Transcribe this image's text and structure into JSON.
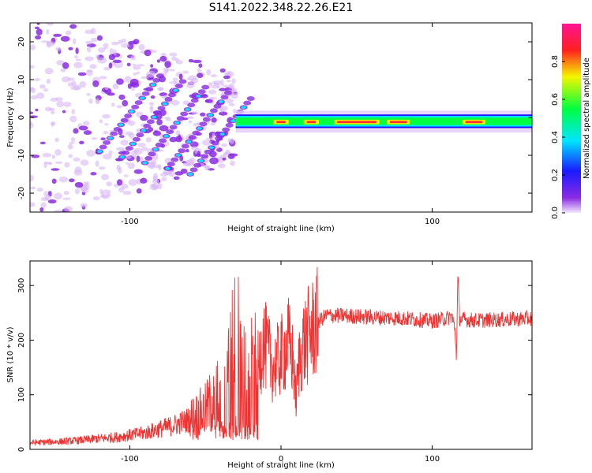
{
  "title": "S141.2022.348.22.26.E21",
  "chart_data": [
    {
      "type": "heatmap",
      "name": "spectrogram",
      "xlabel": "Height of straight line (km)",
      "ylabel": "Frequency (Hz)",
      "xlim": [
        -166,
        166
      ],
      "ylim": [
        -25,
        25
      ],
      "xticks": [
        -100,
        0,
        100
      ],
      "xtick_labels": [
        "-100",
        "",
        "100"
      ],
      "yticks": [
        -20,
        -10,
        0,
        10,
        20
      ],
      "ytick_labels": [
        "-20",
        "-10",
        "0",
        "10",
        "20"
      ],
      "colorbar": {
        "label": "Normalized spectral amplitude",
        "range": [
          0,
          1
        ],
        "ticks": [
          0.0,
          0.2,
          0.4,
          0.6,
          0.8
        ],
        "tick_labels": [
          "0.0",
          "0.2",
          "0.4",
          "0.6",
          "0.8"
        ],
        "colormap": "rainbow (purple-blue-cyan-green-yellow-red-magenta)"
      },
      "features": [
        {
          "x": [
            -166,
            -30
          ],
          "freq_hz": [
            -25,
            25
          ],
          "amplitude": "scattered low (purple) noise"
        },
        {
          "x": [
            -30,
            166
          ],
          "freq_hz": [
            -2,
            1
          ],
          "amplitude": "continuous strong band near 0 Hz, peaks 0.8-0.9"
        },
        {
          "x": [
            -130,
            -30
          ],
          "freq_hz": [
            -10,
            12
          ],
          "amplitude": "diagonal striations rising toward x=-30"
        }
      ],
      "colors": {
        "scatter": "#8a2be2",
        "band_edge": "#00e5ff",
        "band_core": "#ff3030"
      }
    },
    {
      "type": "line",
      "name": "snr",
      "xlabel": "Height of straight line (km)",
      "ylabel": "SNR (10 * v/v)",
      "xlim": [
        -166,
        166
      ],
      "ylim": [
        0,
        345
      ],
      "xticks": [
        -100,
        0,
        100
      ],
      "xtick_labels": [
        "-100",
        "0",
        "100"
      ],
      "yticks": [
        0,
        100,
        200,
        300
      ],
      "ytick_labels": [
        "0",
        "100",
        "200",
        "300"
      ],
      "color": "#ee3333",
      "x": [
        -166,
        -140,
        -110,
        -90,
        -70,
        -60,
        -50,
        -40,
        -35,
        -30,
        -25,
        -20,
        -15,
        -12,
        -8,
        -5,
        0,
        5,
        8,
        10,
        12,
        15,
        20,
        25,
        30,
        40,
        60,
        80,
        100,
        110,
        113,
        115,
        116,
        117,
        118,
        120,
        130,
        150,
        166
      ],
      "y": [
        12,
        15,
        22,
        30,
        45,
        55,
        70,
        110,
        150,
        210,
        170,
        140,
        150,
        200,
        170,
        150,
        170,
        195,
        160,
        90,
        165,
        195,
        215,
        235,
        245,
        245,
        242,
        240,
        235,
        240,
        245,
        220,
        170,
        320,
        240,
        238,
        236,
        238,
        240
      ]
    }
  ]
}
